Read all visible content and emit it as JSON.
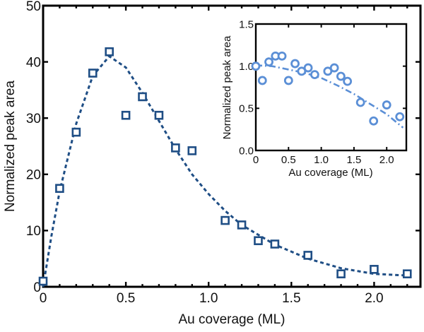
{
  "chart_data": [
    {
      "type": "scatter",
      "title": "",
      "xlabel": "Au coverage (ML)",
      "ylabel": "Normalized peak area",
      "xlim": [
        0,
        2.28
      ],
      "ylim": [
        0,
        50
      ],
      "xticks": [
        0,
        0.5,
        1.0,
        1.5,
        2.0
      ],
      "xtick_labels": [
        "0",
        "0.5",
        "1.0",
        "1.5",
        "2.0"
      ],
      "yticks": [
        0,
        10,
        20,
        30,
        40,
        50
      ],
      "ytick_labels": [
        "0",
        "10",
        "20",
        "30",
        "40",
        "50"
      ],
      "grid": false,
      "marker": "square",
      "color": "#1f4e85",
      "series": [
        {
          "name": "data",
          "x": [
            0,
            0.1,
            0.2,
            0.3,
            0.4,
            0.5,
            0.6,
            0.7,
            0.8,
            0.9,
            1.1,
            1.2,
            1.3,
            1.4,
            1.6,
            1.8,
            2.0,
            2.2
          ],
          "y": [
            1,
            17.5,
            27.5,
            38,
            41.8,
            30.5,
            33.8,
            30.5,
            24.7,
            24.2,
            11.8,
            11,
            8.2,
            7.6,
            5.6,
            2.3,
            3.1,
            2.3
          ]
        },
        {
          "name": "fit",
          "style": "dashed",
          "x": [
            0,
            0.05,
            0.1,
            0.2,
            0.3,
            0.4,
            0.5,
            0.6,
            0.7,
            0.8,
            0.9,
            1.0,
            1.1,
            1.2,
            1.4,
            1.6,
            1.8,
            2.0,
            2.2
          ],
          "y": [
            0,
            9,
            17,
            29,
            37.5,
            41,
            39,
            34.5,
            29.5,
            24.5,
            20,
            16.5,
            13.5,
            11,
            7.5,
            5,
            3.3,
            2.3,
            2.0
          ]
        }
      ]
    },
    {
      "type": "scatter",
      "title": "",
      "placement": "inset top-right",
      "xlabel": "Au coverage (ML)",
      "ylabel": "Normalized peak area",
      "xlim": [
        0,
        2.3
      ],
      "ylim": [
        0,
        1.5
      ],
      "xticks": [
        0,
        0.5,
        1.0,
        1.5,
        2.0
      ],
      "xtick_labels": [
        "0",
        "0.5",
        "1.0",
        "1.5",
        "2.0"
      ],
      "yticks": [
        0,
        0.5,
        1.0,
        1.5
      ],
      "ytick_labels": [
        "0.0",
        "0.5",
        "1.0",
        "1.5"
      ],
      "grid": false,
      "marker": "circle",
      "color": "#5b8fd6",
      "series": [
        {
          "name": "data",
          "x": [
            0,
            0.1,
            0.2,
            0.3,
            0.4,
            0.5,
            0.6,
            0.7,
            0.8,
            0.9,
            1.1,
            1.2,
            1.3,
            1.4,
            1.6,
            1.8,
            2.0,
            2.2
          ],
          "y": [
            1.0,
            0.83,
            1.05,
            1.12,
            1.12,
            0.83,
            1.03,
            0.94,
            0.98,
            0.9,
            0.94,
            0.98,
            0.88,
            0.82,
            0.57,
            0.35,
            0.54,
            0.4
          ]
        },
        {
          "name": "fit",
          "style": "dash-dot",
          "x": [
            0,
            0.25,
            0.5,
            0.75,
            1.0,
            1.25,
            1.5,
            1.75,
            2.0,
            2.25
          ],
          "y": [
            1.01,
            1.0,
            0.96,
            0.92,
            0.86,
            0.77,
            0.67,
            0.55,
            0.43,
            0.27
          ]
        }
      ]
    }
  ]
}
